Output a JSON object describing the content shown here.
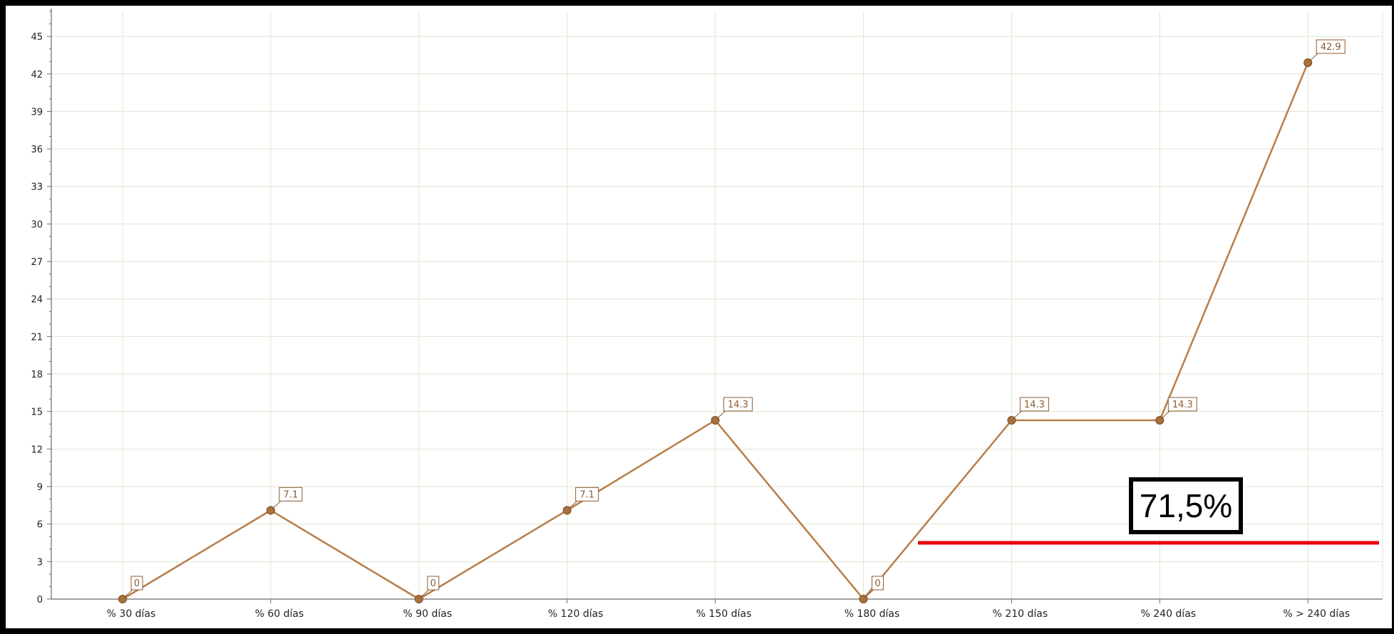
{
  "chart_data": {
    "type": "line",
    "title": "",
    "xlabel": "",
    "ylabel": "",
    "categories": [
      "% 30 días",
      "% 60 días",
      "% 90 días",
      "% 120 días",
      "% 150 días",
      "% 180 días",
      "% 210 días",
      "% 240 días",
      "% > 240 días"
    ],
    "series": [
      {
        "values": [
          0,
          7.1,
          0,
          7.1,
          14.3,
          0,
          14.3,
          14.3,
          42.9
        ],
        "data_labels": [
          "0",
          "7.1",
          "0",
          "7.1",
          "14.3",
          "0",
          "14.3",
          "14.3",
          "42.9"
        ],
        "color": "#b87d47"
      }
    ],
    "ylim": [
      0,
      47
    ],
    "yticks": [
      0,
      3,
      6,
      9,
      12,
      15,
      18,
      21,
      24,
      27,
      30,
      33,
      36,
      39,
      42,
      45
    ],
    "grid": true,
    "legend": "none"
  },
  "annotation": {
    "text": "71,5%",
    "line_value": 4.5,
    "line_color": "#e8000b",
    "box_border_color": "#000000"
  },
  "colors": {
    "grid": "#dfe6d0",
    "axis": "#6b6b6b",
    "point_fill": "#a8703c",
    "label_border": "#8c5a32"
  }
}
